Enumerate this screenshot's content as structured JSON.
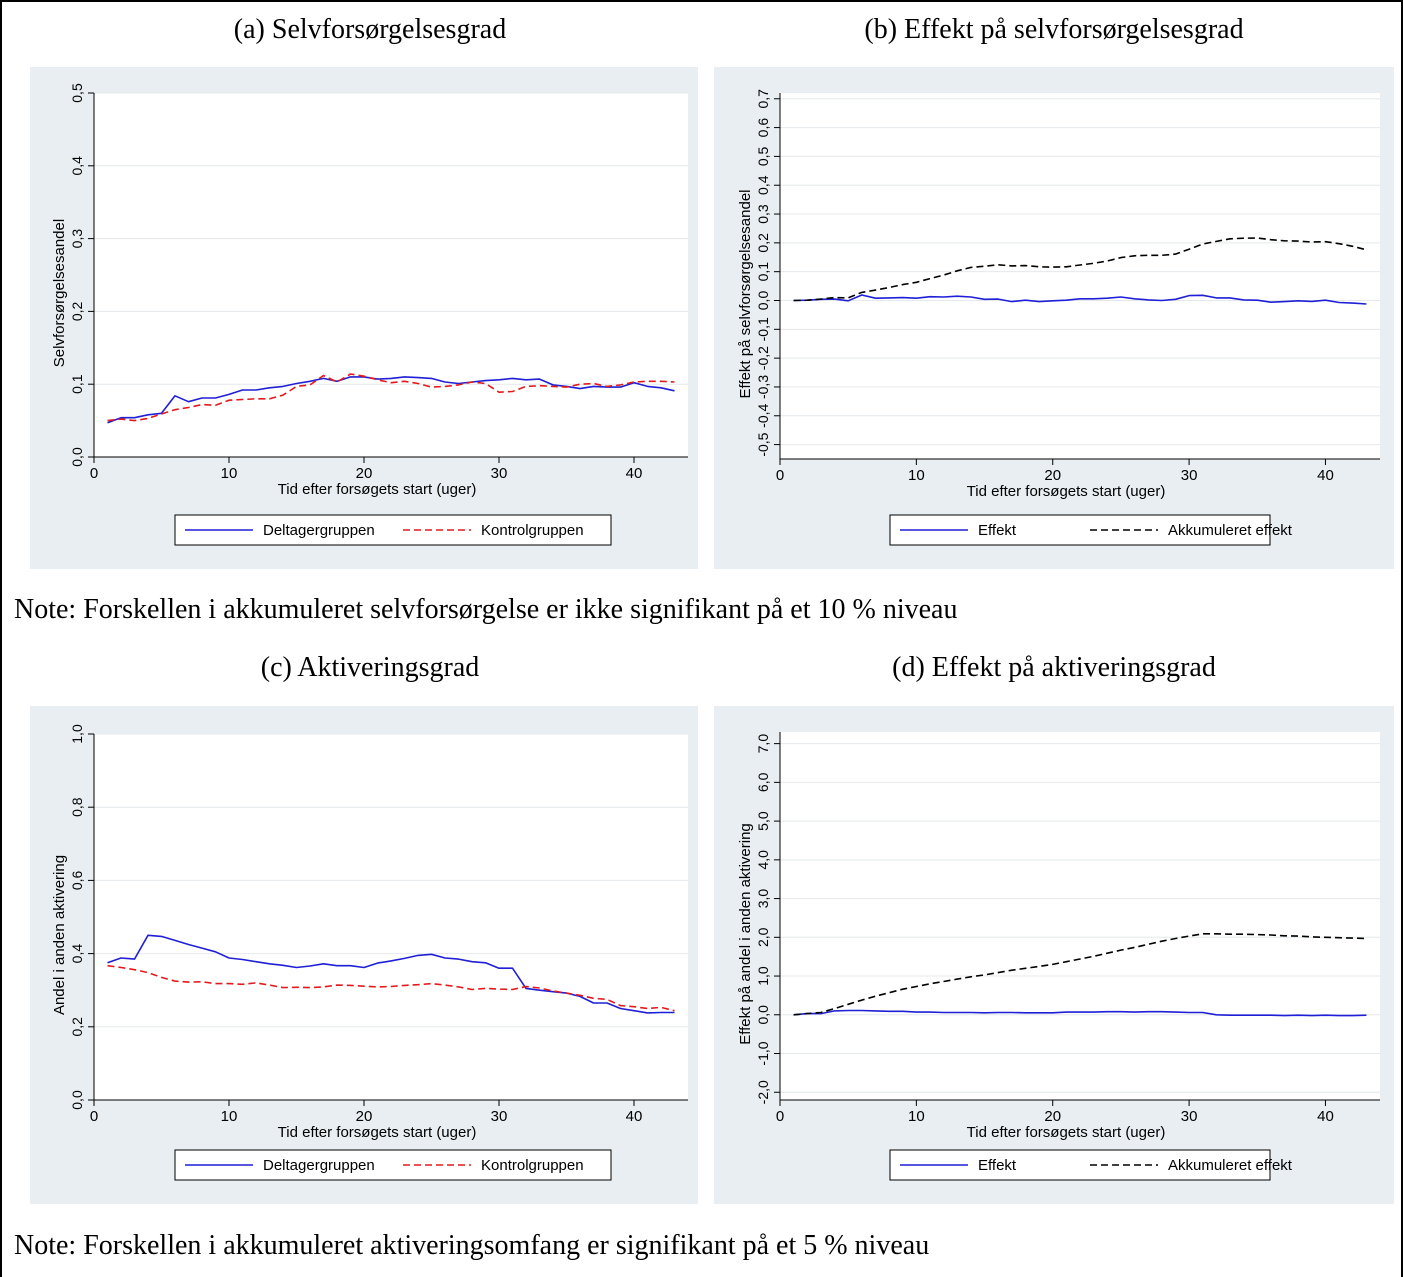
{
  "titles": {
    "a": "(a) Selvforsørgelsesgrad",
    "b": "(b) Effekt på selvforsørgelsesgrad",
    "c": "(c) Aktiveringsgrad",
    "d": "(d) Effekt på aktiveringsgrad"
  },
  "notes": {
    "top": "Note: Forskellen i akkumuleret selvforsørgelse er ikke signifikant på et 10 % niveau",
    "bottom": "Note: Forskellen i akkumuleret aktiveringsomfang er signifikant på et 5 % niveau"
  },
  "colors": {
    "panel_bg": "#e8eef1",
    "blue": "#1f1fd6",
    "red": "#e31a1c",
    "black": "#000000",
    "grid": "#ffffff"
  },
  "chart_data": [
    {
      "id": "a",
      "type": "line",
      "title": "(a) Selvforsørgelsesgrad",
      "xlabel": "Tid efter forsøgets start (uger)",
      "ylabel": "Selvforsørgelsesandel",
      "xlim": [
        0,
        44
      ],
      "xticks": [
        "0",
        "10",
        "20",
        "30",
        "40"
      ],
      "ylim": [
        0,
        0.5
      ],
      "yticks": [
        "0,0",
        "0,1",
        "0,2",
        "0,3",
        "0,4",
        "0,5"
      ],
      "grid": true,
      "legend_position": "bottom",
      "x": [
        1,
        2,
        3,
        4,
        5,
        6,
        7,
        8,
        9,
        10,
        11,
        12,
        13,
        14,
        15,
        16,
        17,
        18,
        19,
        20,
        21,
        22,
        23,
        24,
        25,
        26,
        27,
        28,
        29,
        30,
        31,
        32,
        33,
        34,
        35,
        36,
        37,
        38,
        39,
        40,
        41,
        42,
        43
      ],
      "series": [
        {
          "name": "Deltagergruppen",
          "color": "#1f1fd6",
          "dash": "solid",
          "values": [
            0.047,
            0.054,
            0.054,
            0.058,
            0.06,
            0.084,
            0.076,
            0.081,
            0.081,
            0.086,
            0.092,
            0.092,
            0.095,
            0.097,
            0.101,
            0.104,
            0.108,
            0.104,
            0.11,
            0.11,
            0.107,
            0.108,
            0.11,
            0.109,
            0.108,
            0.103,
            0.101,
            0.103,
            0.105,
            0.106,
            0.108,
            0.106,
            0.107,
            0.099,
            0.097,
            0.094,
            0.097,
            0.096,
            0.096,
            0.102,
            0.097,
            0.095,
            0.091
          ]
        },
        {
          "name": "Kontrolgruppen",
          "color": "#e31a1c",
          "dash": "dashed",
          "values": [
            0.05,
            0.052,
            0.05,
            0.053,
            0.059,
            0.065,
            0.068,
            0.072,
            0.071,
            0.078,
            0.079,
            0.08,
            0.08,
            0.085,
            0.097,
            0.099,
            0.112,
            0.103,
            0.114,
            0.111,
            0.106,
            0.102,
            0.104,
            0.101,
            0.096,
            0.097,
            0.099,
            0.103,
            0.101,
            0.089,
            0.09,
            0.097,
            0.098,
            0.097,
            0.096,
            0.1,
            0.101,
            0.097,
            0.099,
            0.103,
            0.104,
            0.104,
            0.103
          ]
        }
      ]
    },
    {
      "id": "b",
      "type": "line",
      "title": "(b) Effekt på selvforsørgelsesgrad",
      "xlabel": "Tid efter forsøgets start (uger)",
      "ylabel": "Effekt på selvforsørgelsesandel",
      "xlim": [
        0,
        44
      ],
      "xticks": [
        "0",
        "10",
        "20",
        "30",
        "40"
      ],
      "ylim": [
        -0.55,
        0.72
      ],
      "yticks": [
        "-0,5",
        "-0,4",
        "-0,3",
        "-0,2",
        "-0,1",
        "0,0",
        "0,1",
        "0,2",
        "0,3",
        "0,4",
        "0,5",
        "0,6",
        "0,7"
      ],
      "ytick_values": [
        -0.5,
        -0.4,
        -0.3,
        -0.2,
        -0.1,
        0.0,
        0.1,
        0.2,
        0.3,
        0.4,
        0.5,
        0.6,
        0.7
      ],
      "grid": true,
      "legend_position": "bottom",
      "x": [
        1,
        2,
        3,
        4,
        5,
        6,
        7,
        8,
        9,
        10,
        11,
        12,
        13,
        14,
        15,
        16,
        17,
        18,
        19,
        20,
        21,
        22,
        23,
        24,
        25,
        26,
        27,
        28,
        29,
        30,
        31,
        32,
        33,
        34,
        35,
        36,
        37,
        38,
        39,
        40,
        41,
        42,
        43
      ],
      "series": [
        {
          "name": "Effekt",
          "color": "#1f1fd6",
          "dash": "solid",
          "values": [
            0.0,
            0.001,
            0.004,
            0.005,
            -0.001,
            0.019,
            0.008,
            0.009,
            0.01,
            0.008,
            0.013,
            0.012,
            0.015,
            0.012,
            0.004,
            0.005,
            -0.004,
            0.001,
            -0.004,
            -0.001,
            0.001,
            0.006,
            0.006,
            0.008,
            0.012,
            0.006,
            0.002,
            0.0,
            0.004,
            0.017,
            0.018,
            0.009,
            0.009,
            0.002,
            0.001,
            -0.006,
            -0.004,
            -0.001,
            -0.003,
            0.001,
            -0.007,
            -0.009,
            -0.012
          ]
        },
        {
          "name": "Akkumuleret effekt",
          "color": "#000000",
          "dash": "dashed",
          "values": [
            0.0,
            0.001,
            0.005,
            0.01,
            0.009,
            0.028,
            0.036,
            0.045,
            0.055,
            0.063,
            0.076,
            0.088,
            0.103,
            0.115,
            0.119,
            0.124,
            0.12,
            0.121,
            0.117,
            0.116,
            0.117,
            0.123,
            0.129,
            0.137,
            0.149,
            0.155,
            0.157,
            0.157,
            0.161,
            0.178,
            0.196,
            0.205,
            0.214,
            0.216,
            0.217,
            0.211,
            0.207,
            0.206,
            0.203,
            0.204,
            0.197,
            0.188,
            0.176
          ]
        }
      ]
    },
    {
      "id": "c",
      "type": "line",
      "title": "(c) Aktiveringsgrad",
      "xlabel": "Tid efter forsøgets start (uger)",
      "ylabel": "Andel i anden aktivering",
      "xlim": [
        0,
        44
      ],
      "xticks": [
        "0",
        "10",
        "20",
        "30",
        "40"
      ],
      "ylim": [
        0,
        1.0
      ],
      "yticks": [
        "0,0",
        "0,2",
        "0,4",
        "0,6",
        "0,8",
        "1,0"
      ],
      "grid": true,
      "legend_position": "bottom",
      "x": [
        1,
        2,
        3,
        4,
        5,
        6,
        7,
        8,
        9,
        10,
        11,
        12,
        13,
        14,
        15,
        16,
        17,
        18,
        19,
        20,
        21,
        22,
        23,
        24,
        25,
        26,
        27,
        28,
        29,
        30,
        31,
        32,
        33,
        34,
        35,
        36,
        37,
        38,
        39,
        40,
        41,
        42,
        43
      ],
      "series": [
        {
          "name": "Deltagergruppen",
          "color": "#1f1fd6",
          "dash": "solid",
          "values": [
            0.375,
            0.388,
            0.385,
            0.45,
            0.447,
            0.436,
            0.425,
            0.415,
            0.405,
            0.388,
            0.384,
            0.378,
            0.372,
            0.368,
            0.362,
            0.366,
            0.372,
            0.367,
            0.367,
            0.362,
            0.374,
            0.38,
            0.387,
            0.395,
            0.398,
            0.388,
            0.385,
            0.378,
            0.375,
            0.36,
            0.36,
            0.305,
            0.3,
            0.296,
            0.292,
            0.283,
            0.265,
            0.265,
            0.25,
            0.244,
            0.238,
            0.239,
            0.239
          ]
        },
        {
          "name": "Kontrolgruppen",
          "color": "#e31a1c",
          "dash": "dashed",
          "values": [
            0.367,
            0.362,
            0.356,
            0.348,
            0.335,
            0.325,
            0.322,
            0.323,
            0.318,
            0.318,
            0.316,
            0.32,
            0.314,
            0.307,
            0.308,
            0.307,
            0.309,
            0.314,
            0.313,
            0.311,
            0.309,
            0.31,
            0.313,
            0.315,
            0.318,
            0.314,
            0.309,
            0.302,
            0.305,
            0.303,
            0.302,
            0.31,
            0.306,
            0.298,
            0.292,
            0.286,
            0.278,
            0.275,
            0.258,
            0.255,
            0.25,
            0.253,
            0.244
          ]
        }
      ]
    },
    {
      "id": "d",
      "type": "line",
      "title": "(d) Effekt på aktiveringsgrad",
      "xlabel": "Tid efter forsøgets start (uger)",
      "ylabel": "Effekt på andel i anden aktivering",
      "xlim": [
        0,
        44
      ],
      "xticks": [
        "0",
        "10",
        "20",
        "30",
        "40"
      ],
      "ylim": [
        -2.2,
        7.3
      ],
      "yticks": [
        "-2,0",
        "-1,0",
        "0,0",
        "1,0",
        "2,0",
        "3,0",
        "4,0",
        "5,0",
        "6,0",
        "7,0"
      ],
      "ytick_values": [
        -2,
        -1,
        0,
        1,
        2,
        3,
        4,
        5,
        6,
        7
      ],
      "grid": true,
      "legend_position": "bottom",
      "x": [
        1,
        2,
        3,
        4,
        5,
        6,
        7,
        8,
        9,
        10,
        11,
        12,
        13,
        14,
        15,
        16,
        17,
        18,
        19,
        20,
        21,
        22,
        23,
        24,
        25,
        26,
        27,
        28,
        29,
        30,
        31,
        32,
        33,
        34,
        35,
        36,
        37,
        38,
        39,
        40,
        41,
        42,
        43
      ],
      "series": [
        {
          "name": "Effekt",
          "color": "#1f1fd6",
          "dash": "solid",
          "values": [
            0.0,
            0.03,
            0.03,
            0.1,
            0.11,
            0.11,
            0.1,
            0.09,
            0.09,
            0.07,
            0.07,
            0.06,
            0.06,
            0.06,
            0.05,
            0.06,
            0.06,
            0.05,
            0.05,
            0.05,
            0.07,
            0.07,
            0.07,
            0.08,
            0.08,
            0.07,
            0.08,
            0.08,
            0.07,
            0.06,
            0.06,
            0.0,
            -0.01,
            -0.01,
            -0.01,
            -0.01,
            -0.02,
            -0.01,
            -0.02,
            -0.01,
            -0.02,
            -0.02,
            -0.01
          ]
        },
        {
          "name": "Akkumuleret effekt",
          "color": "#000000",
          "dash": "dashed",
          "values": [
            0.0,
            0.03,
            0.06,
            0.16,
            0.27,
            0.38,
            0.48,
            0.57,
            0.66,
            0.73,
            0.8,
            0.86,
            0.92,
            0.98,
            1.03,
            1.09,
            1.15,
            1.2,
            1.25,
            1.3,
            1.37,
            1.44,
            1.51,
            1.59,
            1.67,
            1.74,
            1.82,
            1.9,
            1.97,
            2.03,
            2.09,
            2.09,
            2.08,
            2.08,
            2.07,
            2.06,
            2.04,
            2.03,
            2.01,
            2.0,
            1.99,
            1.98,
            1.97
          ]
        }
      ]
    }
  ]
}
